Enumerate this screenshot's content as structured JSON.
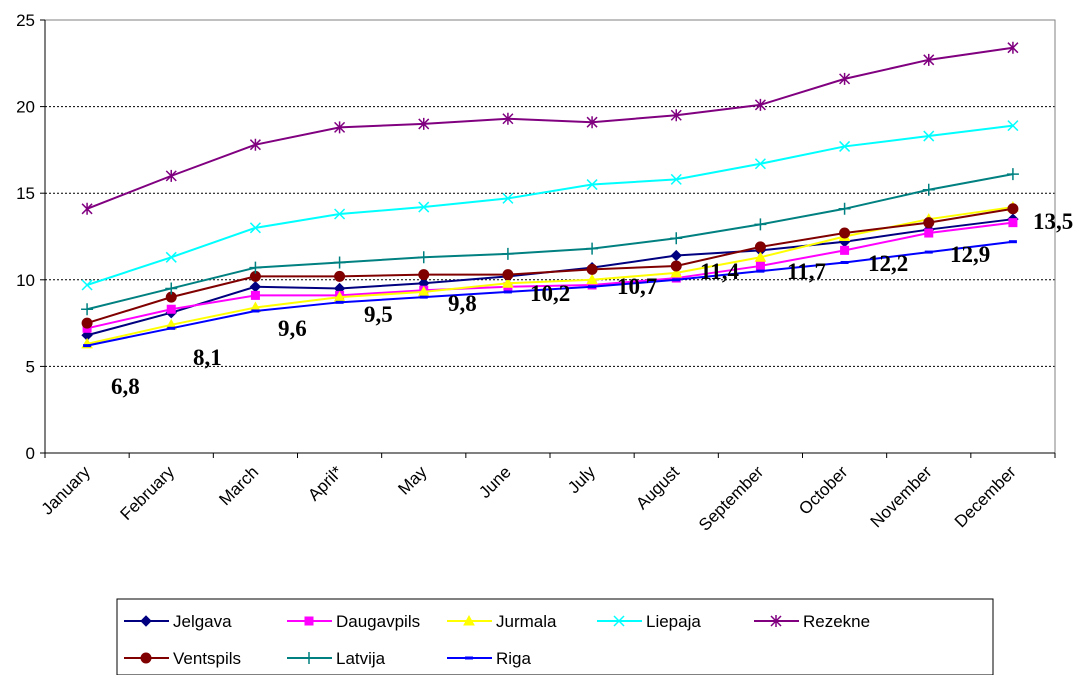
{
  "chart_data": {
    "type": "line",
    "title": "",
    "xlabel": "",
    "ylabel": "",
    "categories": [
      "January",
      "February",
      "March",
      "April*",
      "May",
      "June",
      "July",
      "August",
      "September",
      "October",
      "November",
      "December"
    ],
    "ylim": [
      0,
      25
    ],
    "yticks": [
      "0",
      "5",
      "10",
      "15",
      "20",
      "25"
    ],
    "grid": "horizontal dotted",
    "legend_position": "bottom",
    "series": [
      {
        "name": "Jelgava",
        "color": "#000080",
        "marker": "diamond",
        "values": [
          6.8,
          8.1,
          9.6,
          9.5,
          9.8,
          10.2,
          10.7,
          11.4,
          11.7,
          12.2,
          12.9,
          13.5
        ]
      },
      {
        "name": "Daugavpils",
        "color": "#ff00ff",
        "marker": "square",
        "values": [
          7.2,
          8.3,
          9.1,
          9.1,
          9.4,
          9.6,
          9.7,
          10.1,
          10.8,
          11.7,
          12.7,
          13.3
        ]
      },
      {
        "name": "Jurmala",
        "color": "#ffff00",
        "marker": "triangle",
        "values": [
          6.3,
          7.4,
          8.4,
          9.0,
          9.3,
          9.8,
          10.0,
          10.4,
          11.3,
          12.5,
          13.5,
          14.2
        ]
      },
      {
        "name": "Liepaja",
        "color": "#00ffff",
        "marker": "x",
        "values": [
          9.7,
          11.3,
          13.0,
          13.8,
          14.2,
          14.7,
          15.5,
          15.8,
          16.7,
          17.7,
          18.3,
          18.9
        ]
      },
      {
        "name": "Rezekne",
        "color": "#800080",
        "marker": "star",
        "values": [
          14.1,
          16.0,
          17.8,
          18.8,
          19.0,
          19.3,
          19.1,
          19.5,
          20.1,
          21.6,
          22.7,
          23.4
        ]
      },
      {
        "name": "Ventspils",
        "color": "#800000",
        "marker": "circle",
        "values": [
          7.5,
          9.0,
          10.2,
          10.2,
          10.3,
          10.3,
          10.6,
          10.8,
          11.9,
          12.7,
          13.3,
          14.1
        ]
      },
      {
        "name": "Latvija",
        "color": "#008080",
        "marker": "plus",
        "values": [
          8.3,
          9.5,
          10.7,
          11.0,
          11.3,
          11.5,
          11.8,
          12.4,
          13.2,
          14.1,
          15.2,
          16.1
        ]
      },
      {
        "name": "Riga",
        "color": "#0000ff",
        "marker": "dash",
        "values": [
          6.2,
          7.2,
          8.2,
          8.7,
          9.0,
          9.3,
          9.6,
          10.0,
          10.5,
          11.0,
          11.6,
          12.2
        ]
      }
    ],
    "data_labels": [
      "6,8",
      "8,1",
      "9,6",
      "9,5",
      "9,8",
      "10,2",
      "10,7",
      "11,4",
      "11,7",
      "12,2",
      "12,9",
      "13,5"
    ]
  }
}
